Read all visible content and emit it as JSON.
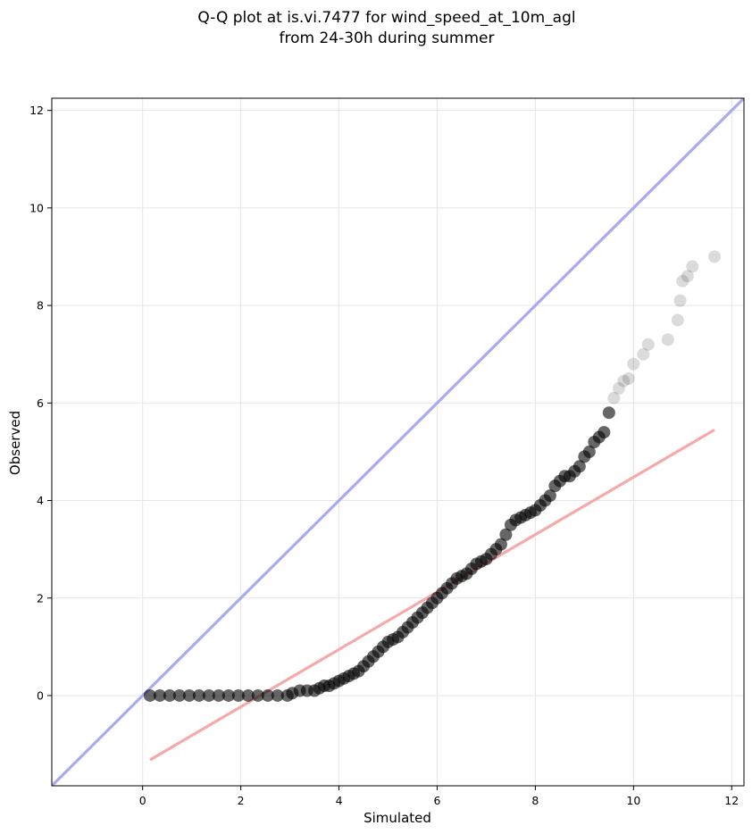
{
  "chart_data": {
    "type": "scatter",
    "title_lines": [
      "Q-Q plot at is.vi.7477 for wind_speed_at_10m_agl",
      "from 24-30h during summer"
    ],
    "xlabel": "Simulated",
    "ylabel": "Observed",
    "xlim": [
      -1.85,
      12.25
    ],
    "ylim": [
      -1.85,
      12.25
    ],
    "xticks": [
      0,
      2,
      4,
      6,
      8,
      10,
      12
    ],
    "yticks": [
      0,
      2,
      4,
      6,
      8,
      10,
      12
    ],
    "grid": true,
    "point_color": "#000000",
    "identity_line_color": "#aaaaf0",
    "fit_line_color": "#f5aaaa",
    "identity_line": {
      "x": [
        -1.85,
        12.25
      ],
      "y": [
        -1.85,
        12.25
      ]
    },
    "fit_line": {
      "x": [
        0.15,
        11.65
      ],
      "y": [
        -1.32,
        5.45
      ]
    },
    "quantiles": {
      "x": [
        0.15,
        0.35,
        0.55,
        0.75,
        0.95,
        1.15,
        1.35,
        1.55,
        1.75,
        1.95,
        2.15,
        2.35,
        2.55,
        2.75,
        2.95,
        3.05,
        3.2,
        3.35,
        3.5,
        3.6,
        3.7,
        3.8,
        3.9,
        4.0,
        4.1,
        4.2,
        4.3,
        4.4,
        4.5,
        4.6,
        4.7,
        4.8,
        4.9,
        5.0,
        5.1,
        5.2,
        5.3,
        5.4,
        5.5,
        5.6,
        5.7,
        5.8,
        5.9,
        6.0,
        6.1,
        6.2,
        6.3,
        6.4,
        6.5,
        6.6,
        6.7,
        6.8,
        6.9,
        7.0,
        7.1,
        7.2,
        7.3,
        7.4,
        7.5,
        7.6,
        7.7,
        7.8,
        7.9,
        8.0,
        8.1,
        8.2,
        8.3,
        8.4,
        8.5,
        8.6,
        8.7,
        8.8,
        8.9,
        9.0,
        9.1,
        9.2,
        9.3,
        9.4,
        9.5,
        9.6,
        9.7,
        9.8,
        9.9,
        10.0,
        10.2,
        10.3,
        10.7,
        10.9,
        10.95,
        11.0,
        11.1,
        11.2,
        11.65
      ],
      "y": [
        0,
        0,
        0,
        0,
        0,
        0,
        0,
        0,
        0,
        0,
        0,
        0,
        0,
        0,
        0,
        0.05,
        0.1,
        0.1,
        0.1,
        0.15,
        0.2,
        0.2,
        0.25,
        0.3,
        0.35,
        0.4,
        0.45,
        0.5,
        0.6,
        0.7,
        0.8,
        0.9,
        1.0,
        1.1,
        1.15,
        1.2,
        1.3,
        1.4,
        1.5,
        1.6,
        1.7,
        1.8,
        1.9,
        2.0,
        2.1,
        2.2,
        2.3,
        2.4,
        2.45,
        2.5,
        2.6,
        2.7,
        2.75,
        2.8,
        2.9,
        3.0,
        3.1,
        3.3,
        3.5,
        3.6,
        3.65,
        3.7,
        3.75,
        3.8,
        3.9,
        4.0,
        4.1,
        4.3,
        4.4,
        4.5,
        4.5,
        4.6,
        4.7,
        4.9,
        5.0,
        5.2,
        5.3,
        5.4,
        5.8,
        6.1,
        6.3,
        6.45,
        6.5,
        6.8,
        7.0,
        7.2,
        7.3,
        7.7,
        8.1,
        8.5,
        8.6,
        8.8,
        9.0
      ]
    }
  }
}
